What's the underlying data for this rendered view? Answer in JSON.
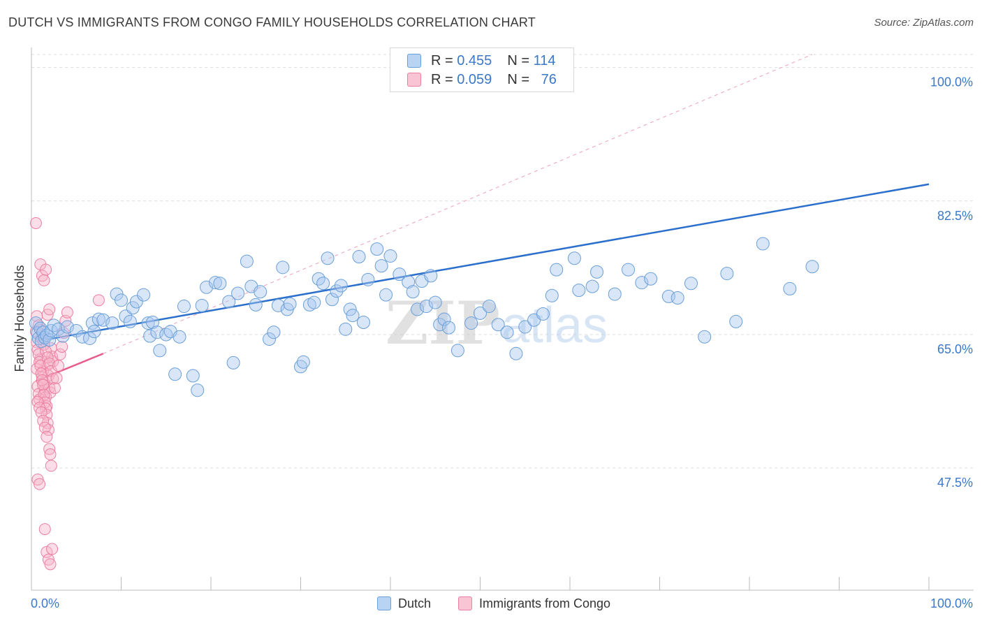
{
  "title": "DUTCH VS IMMIGRANTS FROM CONGO FAMILY HOUSEHOLDS CORRELATION CHART",
  "source": "Source: ZipAtlas.com",
  "watermark": {
    "part1": "ZIP",
    "part2": "atlas"
  },
  "legend": {
    "rows": [
      {
        "r_label": "R =",
        "r_value": "0.455",
        "n_label": "N =",
        "n_value": "114"
      },
      {
        "r_label": "R =",
        "r_value": "0.059",
        "n_label": "N =",
        "n_value": "76"
      }
    ]
  },
  "bottom_legend": {
    "series1": "Dutch",
    "series2": "Immigrants from Congo"
  },
  "colors": {
    "dutch_fill": "#a8c8f0",
    "dutch_stroke": "#6a9fd8",
    "dutch_line": "#2a6fcb",
    "congo_fill": "#f7b6c9",
    "congo_stroke": "#ec7fa0",
    "congo_line": "#e85d8a",
    "tick_label": "#3b78c9",
    "grid": "#dddddd"
  },
  "chart_data": {
    "type": "scatter",
    "title": "DUTCH VS IMMIGRANTS FROM CONGO FAMILY HOUSEHOLDS CORRELATION CHART",
    "xlabel": "",
    "ylabel": "Family Households",
    "xlim": [
      0,
      100
    ],
    "ylim": [
      31.5,
      101.7
    ],
    "x_tick_labels": [
      "0.0%",
      "100.0%"
    ],
    "y_ticks": [
      {
        "value": 47.5,
        "label": "47.5%"
      },
      {
        "value": 65.0,
        "label": "65.0%"
      },
      {
        "value": 82.5,
        "label": "82.5%"
      },
      {
        "value": 100.0,
        "label": "100.0%"
      }
    ],
    "grid": true,
    "series": [
      {
        "name": "Dutch",
        "r": 0.455,
        "n": 114,
        "trend": {
          "x": [
            0.5,
            100
          ],
          "y": [
            64.1,
            84.7
          ]
        },
        "points": [
          [
            0.5,
            66.5
          ],
          [
            0.7,
            65.2
          ],
          [
            0.8,
            64.5
          ],
          [
            1.0,
            65.8
          ],
          [
            1.1,
            64.1
          ],
          [
            1.3,
            65.3
          ],
          [
            1.5,
            64.6
          ],
          [
            1.7,
            64.9
          ],
          [
            2.0,
            64.3
          ],
          [
            2.2,
            65.5
          ],
          [
            2.5,
            66.2
          ],
          [
            3.0,
            65.7
          ],
          [
            3.5,
            64.8
          ],
          [
            4.0,
            66.0
          ],
          [
            5.0,
            65.5
          ],
          [
            5.7,
            64.7
          ],
          [
            6.5,
            64.5
          ],
          [
            6.8,
            66.5
          ],
          [
            7.0,
            65.4
          ],
          [
            7.5,
            67.0
          ],
          [
            8.0,
            66.9
          ],
          [
            9.0,
            66.5
          ],
          [
            9.5,
            70.3
          ],
          [
            10.0,
            69.5
          ],
          [
            10.5,
            67.4
          ],
          [
            11.0,
            66.7
          ],
          [
            11.3,
            68.5
          ],
          [
            11.7,
            69.3
          ],
          [
            12.5,
            70.2
          ],
          [
            13.0,
            66.5
          ],
          [
            13.2,
            64.8
          ],
          [
            13.5,
            66.6
          ],
          [
            14.0,
            65.3
          ],
          [
            14.3,
            62.9
          ],
          [
            15.0,
            65.0
          ],
          [
            15.5,
            65.4
          ],
          [
            16.0,
            59.8
          ],
          [
            16.5,
            64.7
          ],
          [
            17.0,
            68.7
          ],
          [
            18.0,
            59.6
          ],
          [
            18.5,
            57.7
          ],
          [
            19.0,
            68.8
          ],
          [
            19.5,
            71.2
          ],
          [
            20.5,
            71.8
          ],
          [
            21.0,
            71.7
          ],
          [
            22.0,
            69.3
          ],
          [
            22.5,
            61.3
          ],
          [
            23.0,
            70.4
          ],
          [
            24.0,
            74.6
          ],
          [
            24.5,
            71.3
          ],
          [
            25.0,
            68.9
          ],
          [
            25.5,
            70.6
          ],
          [
            26.5,
            64.4
          ],
          [
            27.0,
            65.3
          ],
          [
            27.5,
            68.8
          ],
          [
            28.0,
            73.8
          ],
          [
            28.5,
            68.3
          ],
          [
            28.8,
            69.0
          ],
          [
            30.0,
            60.8
          ],
          [
            30.3,
            61.4
          ],
          [
            31.0,
            68.9
          ],
          [
            31.5,
            69.2
          ],
          [
            32.0,
            72.3
          ],
          [
            32.5,
            71.7
          ],
          [
            33.0,
            75.0
          ],
          [
            33.5,
            69.6
          ],
          [
            34.0,
            70.7
          ],
          [
            34.5,
            71.4
          ],
          [
            35.0,
            65.7
          ],
          [
            35.5,
            68.3
          ],
          [
            35.8,
            67.5
          ],
          [
            36.5,
            75.2
          ],
          [
            37.0,
            66.6
          ],
          [
            37.5,
            72.2
          ],
          [
            38.5,
            76.2
          ],
          [
            39.0,
            74.0
          ],
          [
            39.5,
            70.2
          ],
          [
            40.0,
            75.3
          ],
          [
            41.0,
            72.9
          ],
          [
            42.0,
            71.9
          ],
          [
            42.5,
            70.6
          ],
          [
            43.0,
            68.3
          ],
          [
            43.5,
            72.0
          ],
          [
            44.0,
            68.7
          ],
          [
            44.5,
            72.7
          ],
          [
            45.0,
            69.2
          ],
          [
            45.5,
            66.3
          ],
          [
            46.0,
            67.0
          ],
          [
            46.5,
            65.9
          ],
          [
            47.5,
            62.9
          ],
          [
            49.0,
            66.5
          ],
          [
            50.0,
            67.8
          ],
          [
            51.0,
            68.7
          ],
          [
            52.0,
            66.3
          ],
          [
            53.0,
            65.3
          ],
          [
            54.0,
            62.5
          ],
          [
            55.0,
            66.0
          ],
          [
            56.0,
            66.9
          ],
          [
            57.0,
            67.7
          ],
          [
            58.0,
            70.1
          ],
          [
            58.5,
            73.5
          ],
          [
            60.5,
            75.0
          ],
          [
            61.0,
            70.8
          ],
          [
            62.5,
            71.3
          ],
          [
            63.0,
            73.2
          ],
          [
            65.0,
            70.3
          ],
          [
            66.5,
            73.5
          ],
          [
            68.0,
            71.8
          ],
          [
            69.0,
            72.3
          ],
          [
            71.0,
            70.0
          ],
          [
            72.0,
            69.8
          ],
          [
            73.5,
            71.7
          ],
          [
            75.0,
            64.7
          ],
          [
            77.5,
            73.0
          ],
          [
            78.5,
            66.7
          ],
          [
            81.5,
            76.9
          ],
          [
            84.5,
            71.0
          ],
          [
            87.0,
            73.9
          ]
        ]
      },
      {
        "name": "Immigrants from Congo",
        "r": 0.059,
        "n": 76,
        "trend": {
          "x": [
            0.5,
            8.0
          ],
          "y": [
            58.9,
            62.5
          ]
        },
        "extension": {
          "x": [
            8.0,
            87.0
          ],
          "y": [
            62.5,
            101.7
          ]
        },
        "points": [
          [
            0.5,
            79.6
          ],
          [
            0.6,
            60.5
          ],
          [
            0.7,
            58.2
          ],
          [
            0.8,
            57.2
          ],
          [
            0.9,
            56.5
          ],
          [
            1.0,
            61.8
          ],
          [
            1.1,
            64.6
          ],
          [
            1.2,
            59.4
          ],
          [
            1.3,
            60.2
          ],
          [
            1.4,
            58.7
          ],
          [
            1.5,
            57.8
          ],
          [
            1.6,
            56.8
          ],
          [
            1.7,
            55.6
          ],
          [
            1.8,
            61.0
          ],
          [
            1.9,
            59.6
          ],
          [
            2.0,
            58.0
          ],
          [
            2.1,
            57.4
          ],
          [
            2.2,
            63.2
          ],
          [
            2.3,
            62.1
          ],
          [
            2.4,
            61.5
          ],
          [
            0.5,
            65.4
          ],
          [
            0.6,
            64.0
          ],
          [
            0.7,
            63.0
          ],
          [
            0.8,
            62.4
          ],
          [
            0.9,
            61.4
          ],
          [
            1.0,
            60.9
          ],
          [
            1.1,
            59.9
          ],
          [
            1.2,
            59.0
          ],
          [
            1.3,
            58.4
          ],
          [
            1.4,
            57.1
          ],
          [
            1.5,
            56.1
          ],
          [
            1.6,
            55.3
          ],
          [
            1.7,
            54.5
          ],
          [
            1.8,
            53.4
          ],
          [
            1.9,
            52.5
          ],
          [
            2.0,
            50.0
          ],
          [
            2.1,
            49.3
          ],
          [
            2.2,
            47.8
          ],
          [
            0.6,
            67.4
          ],
          [
            0.8,
            66.2
          ],
          [
            1.0,
            65.6
          ],
          [
            1.2,
            64.4
          ],
          [
            1.4,
            63.7
          ],
          [
            1.6,
            62.8
          ],
          [
            1.8,
            62.0
          ],
          [
            2.0,
            61.2
          ],
          [
            2.2,
            60.2
          ],
          [
            2.4,
            59.2
          ],
          [
            0.7,
            56.2
          ],
          [
            0.9,
            55.4
          ],
          [
            1.1,
            54.8
          ],
          [
            1.3,
            53.7
          ],
          [
            1.5,
            52.8
          ],
          [
            1.7,
            51.6
          ],
          [
            0.7,
            46.0
          ],
          [
            0.9,
            45.4
          ],
          [
            1.0,
            74.2
          ],
          [
            1.2,
            72.7
          ],
          [
            1.4,
            72.1
          ],
          [
            1.6,
            73.5
          ],
          [
            1.8,
            67.6
          ],
          [
            2.0,
            68.3
          ],
          [
            2.6,
            58.0
          ],
          [
            2.8,
            59.3
          ],
          [
            3.0,
            60.9
          ],
          [
            3.2,
            62.4
          ],
          [
            3.4,
            63.4
          ],
          [
            3.6,
            65.2
          ],
          [
            3.8,
            66.8
          ],
          [
            4.0,
            67.9
          ],
          [
            7.5,
            69.5
          ],
          [
            1.5,
            39.5
          ],
          [
            1.7,
            36.5
          ],
          [
            1.9,
            35.5
          ],
          [
            2.1,
            34.9
          ],
          [
            2.3,
            36.9
          ]
        ]
      }
    ]
  }
}
